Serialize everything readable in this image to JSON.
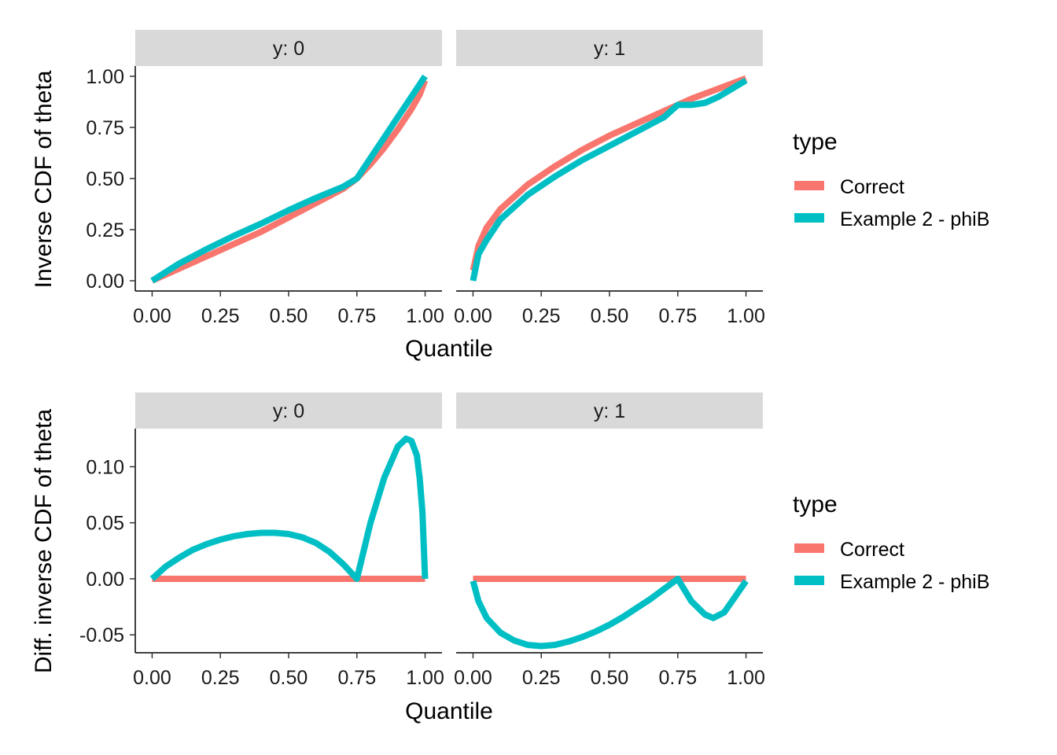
{
  "colors": {
    "correct": "#F8766D",
    "example": "#00BFC4",
    "strip": "#D9D9D9",
    "axis": "#000000"
  },
  "legend": {
    "title": "type",
    "entries": [
      {
        "label": "Correct",
        "color": "#F8766D"
      },
      {
        "label": "Example 2 - phiB",
        "color": "#00BFC4"
      }
    ]
  },
  "chart_data": [
    {
      "type": "line",
      "xlabel": "Quantile",
      "ylabel": "Inverse CDF of theta",
      "xlim": [
        0,
        1
      ],
      "ylim": [
        -0.05,
        1.05
      ],
      "x_ticks": [
        "0.00",
        "0.25",
        "0.50",
        "0.75",
        "1.00"
      ],
      "y_ticks": [
        "0.00",
        "0.25",
        "0.50",
        "0.75",
        "1.00"
      ],
      "panels": [
        {
          "strip": "y: 0",
          "series": [
            {
              "name": "Correct",
              "x": [
                0,
                0.1,
                0.2,
                0.3,
                0.4,
                0.5,
                0.6,
                0.7,
                0.75,
                0.8,
                0.85,
                0.9,
                0.95,
                0.98,
                1.0
              ],
              "y": [
                0,
                0.06,
                0.12,
                0.18,
                0.24,
                0.31,
                0.38,
                0.45,
                0.5,
                0.57,
                0.65,
                0.74,
                0.84,
                0.91,
                0.98
              ]
            },
            {
              "name": "Example 2 - phiB",
              "x": [
                0,
                0.1,
                0.2,
                0.3,
                0.4,
                0.5,
                0.6,
                0.7,
                0.75,
                0.8,
                0.85,
                0.9,
                0.95,
                0.98,
                1.0
              ],
              "y": [
                0,
                0.085,
                0.155,
                0.22,
                0.28,
                0.345,
                0.405,
                0.46,
                0.5,
                0.6,
                0.7,
                0.8,
                0.9,
                0.96,
                1.0
              ]
            }
          ]
        },
        {
          "strip": "y: 1",
          "series": [
            {
              "name": "Correct",
              "x": [
                0,
                0.02,
                0.05,
                0.1,
                0.2,
                0.3,
                0.4,
                0.5,
                0.6,
                0.7,
                0.75,
                0.8,
                0.9,
                1.0
              ],
              "y": [
                0.05,
                0.17,
                0.26,
                0.35,
                0.47,
                0.56,
                0.64,
                0.71,
                0.77,
                0.83,
                0.86,
                0.89,
                0.94,
                0.99
              ]
            },
            {
              "name": "Example 2 - phiB",
              "x": [
                0,
                0.02,
                0.05,
                0.1,
                0.2,
                0.3,
                0.4,
                0.5,
                0.6,
                0.7,
                0.75,
                0.8,
                0.85,
                0.9,
                0.95,
                1.0
              ],
              "y": [
                0,
                0.13,
                0.2,
                0.3,
                0.42,
                0.51,
                0.59,
                0.66,
                0.73,
                0.8,
                0.86,
                0.86,
                0.87,
                0.9,
                0.94,
                0.98
              ]
            }
          ]
        }
      ]
    },
    {
      "type": "line",
      "xlabel": "Quantile",
      "ylabel": "Diff. inverse CDF of theta",
      "xlim": [
        0,
        1
      ],
      "ylim": [
        -0.066,
        0.134
      ],
      "x_ticks": [
        "0.00",
        "0.25",
        "0.50",
        "0.75",
        "1.00"
      ],
      "y_ticks": [
        "-0.05",
        "0.00",
        "0.05",
        "0.10"
      ],
      "y_tick_values": [
        -0.05,
        0,
        0.05,
        0.1
      ],
      "panels": [
        {
          "strip": "y: 0",
          "series": [
            {
              "name": "Correct",
              "x": [
                0,
                1
              ],
              "y": [
                0,
                0
              ]
            },
            {
              "name": "Example 2 - phiB",
              "x": [
                0,
                0.05,
                0.1,
                0.15,
                0.2,
                0.25,
                0.3,
                0.35,
                0.4,
                0.45,
                0.5,
                0.55,
                0.6,
                0.65,
                0.7,
                0.75,
                0.8,
                0.85,
                0.9,
                0.93,
                0.95,
                0.97,
                0.98,
                0.99,
                1.0
              ],
              "y": [
                0,
                0.011,
                0.019,
                0.026,
                0.031,
                0.035,
                0.038,
                0.04,
                0.041,
                0.041,
                0.04,
                0.037,
                0.032,
                0.024,
                0.013,
                0,
                0.05,
                0.09,
                0.118,
                0.125,
                0.123,
                0.11,
                0.09,
                0.06,
                0
              ]
            }
          ]
        },
        {
          "strip": "y: 1",
          "series": [
            {
              "name": "Correct",
              "x": [
                0,
                1
              ],
              "y": [
                0,
                0
              ]
            },
            {
              "name": "Example 2 - phiB",
              "x": [
                0,
                0.02,
                0.05,
                0.1,
                0.15,
                0.2,
                0.25,
                0.3,
                0.35,
                0.4,
                0.45,
                0.5,
                0.55,
                0.6,
                0.65,
                0.7,
                0.75,
                0.8,
                0.85,
                0.88,
                0.92,
                0.96,
                1.0
              ],
              "y": [
                -0.002,
                -0.02,
                -0.035,
                -0.048,
                -0.055,
                -0.059,
                -0.06,
                -0.059,
                -0.056,
                -0.052,
                -0.047,
                -0.041,
                -0.034,
                -0.026,
                -0.018,
                -0.009,
                0,
                -0.02,
                -0.032,
                -0.035,
                -0.03,
                -0.016,
                -0.002
              ]
            }
          ]
        }
      ]
    }
  ]
}
